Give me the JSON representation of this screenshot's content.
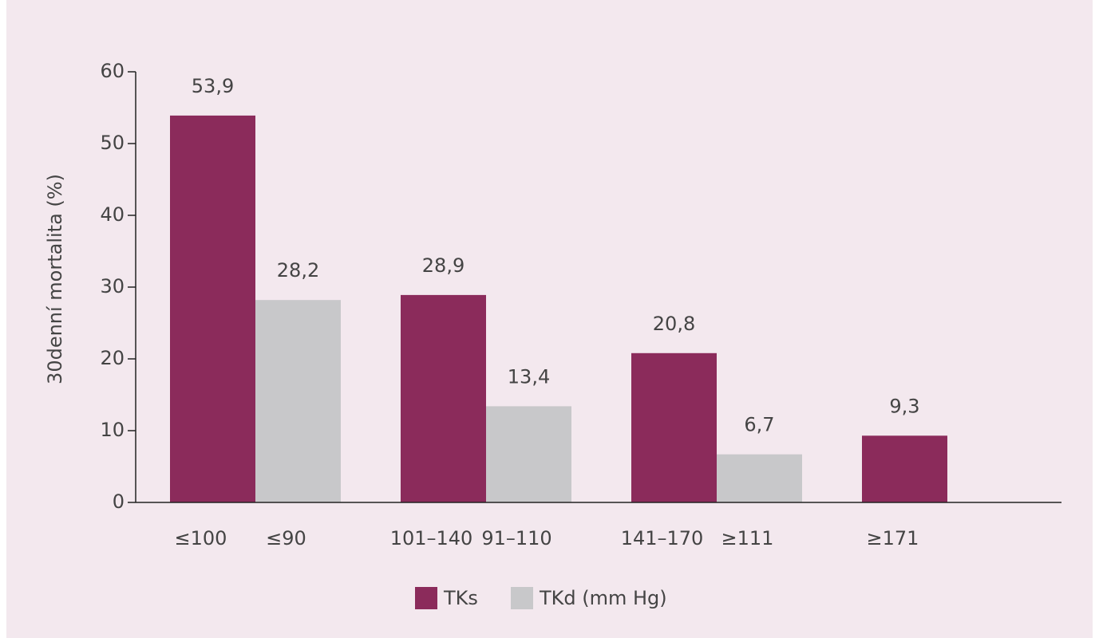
{
  "chart_data": {
    "type": "bar",
    "ylabel": "30denní mortalita (%)",
    "ylim": [
      0,
      60
    ],
    "yticks": [
      0,
      10,
      20,
      30,
      40,
      50,
      60
    ],
    "legend": "bottom",
    "series": [
      {
        "name": "TKs",
        "color": "#8b2b5b",
        "labels": [
          "≤100",
          "101–140",
          "141–170",
          "≥171"
        ],
        "values": [
          53.9,
          28.9,
          20.8,
          9.3
        ],
        "value_labels": [
          "53,9",
          "28,9",
          "20,8",
          "9,3"
        ]
      },
      {
        "name": "TKd (mm Hg)",
        "color": "#c8c8ca",
        "labels": [
          "≤90",
          "91–110",
          "≥111",
          null
        ],
        "values": [
          28.2,
          13.4,
          6.7,
          null
        ],
        "value_labels": [
          "28,2",
          "13,4",
          "6,7",
          null
        ]
      }
    ]
  }
}
